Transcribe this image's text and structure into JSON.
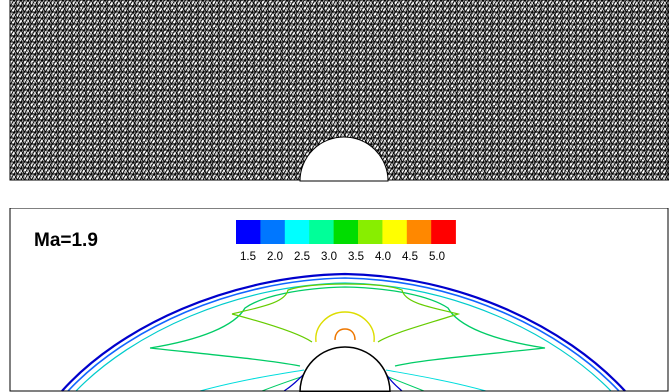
{
  "mesh_panel": {
    "description_visible": false
  },
  "contour_panel": {
    "title": "Ma=1.9",
    "colorbar": {
      "colors": [
        "#0000ff",
        "#0077ff",
        "#00ffff",
        "#00ff99",
        "#00dd00",
        "#88ee00",
        "#ffff00",
        "#ff8800",
        "#ff0000"
      ],
      "tick_labels": [
        "1.5",
        "2.0",
        "2.5",
        "3.0",
        "3.5",
        "4.0",
        "4.5",
        "5.0"
      ]
    },
    "contour_colors": {
      "shock_outer": "#0000cc",
      "shock_mid": "#1166ff",
      "shock_inner": "#00cccc",
      "green_band": "#00cc66",
      "lime_band": "#66cc00",
      "yellow_core": "#dddd00",
      "orange_core": "#ee7700",
      "body_edge": "#000000"
    }
  }
}
